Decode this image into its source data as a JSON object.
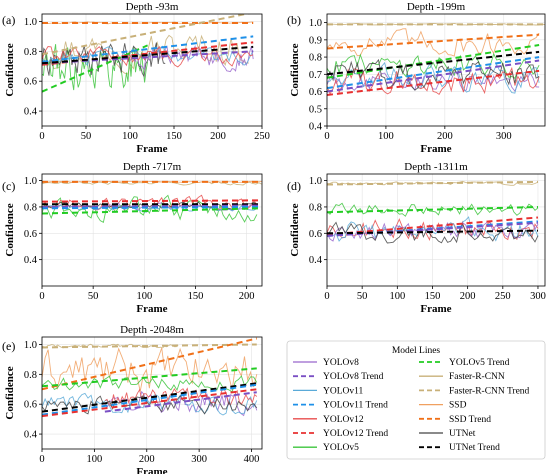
{
  "legend": {
    "title": "Model Lines",
    "entries": [
      {
        "label": "YOLOv8",
        "color": "#9966cc",
        "style": "solid"
      },
      {
        "label": "YOLOv8 Trend",
        "color": "#7a4fc4",
        "style": "dashed"
      },
      {
        "label": "YOLOv11",
        "color": "#5aaad8",
        "style": "solid"
      },
      {
        "label": "YOLOv11 Trend",
        "color": "#1e90e8",
        "style": "dashed"
      },
      {
        "label": "YOLOv12",
        "color": "#e84c4c",
        "style": "solid"
      },
      {
        "label": "YOLOv12 Trend",
        "color": "#e83030",
        "style": "dashed"
      },
      {
        "label": "YOLOv5",
        "color": "#3cc43c",
        "style": "solid"
      },
      {
        "label": "YOLOv5 Trend",
        "color": "#22cc22",
        "style": "dashed"
      },
      {
        "label": "Faster-R-CNN",
        "color": "#c8b078",
        "style": "solid"
      },
      {
        "label": "Faster-R-CNN Trend",
        "color": "#c8b078",
        "style": "dashed"
      },
      {
        "label": "SSD",
        "color": "#f0a060",
        "style": "solid"
      },
      {
        "label": "SSD Trend",
        "color": "#f07018",
        "style": "dashed"
      },
      {
        "label": "UTNet",
        "color": "#444444",
        "style": "solid"
      },
      {
        "label": "UTNet Trend",
        "color": "#000000",
        "style": "dashed"
      }
    ]
  },
  "chart_data": [
    {
      "type": "line",
      "panel_label": "(a)",
      "title": "Depth -93m",
      "xlabel": "Frame",
      "ylabel": "Confidence",
      "xlim": [
        0,
        250
      ],
      "ylim": [
        0.3,
        1.05
      ],
      "xticks": [
        0,
        50,
        100,
        150,
        200,
        250
      ],
      "yticks": [
        0.4,
        0.6,
        0.8,
        1.0
      ],
      "grid": true,
      "series": [
        {
          "name": "Faster-R-CNN",
          "x_range": [
            0,
            235
          ],
          "mean": 0.82,
          "noise": 0.1
        },
        {
          "name": "SSD",
          "x_range": [
            0,
            240
          ],
          "mean": 0.99,
          "noise": 0.005
        },
        {
          "name": "YOLOv5",
          "x_range": [
            0,
            120
          ],
          "mean": 0.7,
          "noise": 0.12
        },
        {
          "name": "UTNet",
          "x_range": [
            0,
            140
          ],
          "mean": 0.75,
          "noise": 0.09
        },
        {
          "name": "YOLOv8",
          "x_range": [
            100,
            240
          ],
          "mean": 0.76,
          "noise": 0.06
        },
        {
          "name": "YOLOv11",
          "x_range": [
            0,
            240
          ],
          "mean": 0.77,
          "noise": 0.05
        },
        {
          "name": "YOLOv12",
          "x_range": [
            0,
            240
          ],
          "mean": 0.77,
          "noise": 0.05
        }
      ],
      "trends": [
        {
          "name": "SSD Trend",
          "x": [
            0,
            240
          ],
          "y": [
            0.99,
            0.99
          ]
        },
        {
          "name": "Faster-R-CNN Trend",
          "x": [
            0,
            240
          ],
          "y": [
            0.78,
            1.06
          ]
        },
        {
          "name": "YOLOv5 Trend",
          "x": [
            0,
            120
          ],
          "y": [
            0.53,
            0.84
          ]
        },
        {
          "name": "YOLOv11 Trend",
          "x": [
            0,
            240
          ],
          "y": [
            0.73,
            0.9
          ]
        },
        {
          "name": "YOLOv12 Trend",
          "x": [
            0,
            240
          ],
          "y": [
            0.71,
            0.86
          ]
        },
        {
          "name": "YOLOv8 Trend",
          "x": [
            0,
            240
          ],
          "y": [
            0.72,
            0.8
          ]
        },
        {
          "name": "UTNet Trend",
          "x": [
            0,
            240
          ],
          "y": [
            0.72,
            0.83
          ]
        }
      ]
    },
    {
      "type": "line",
      "panel_label": "(b)",
      "title": "Depth -199m",
      "xlabel": "Frame",
      "ylabel": "Confidence",
      "xlim": [
        0,
        370
      ],
      "ylim": [
        0.4,
        1.05
      ],
      "xticks": [
        0,
        100,
        200,
        300
      ],
      "yticks": [
        0.4,
        0.5,
        0.6,
        0.7,
        0.8,
        0.9,
        1.0
      ],
      "grid": true,
      "series": [
        {
          "name": "Faster-R-CNN",
          "x_range": [
            0,
            370
          ],
          "mean": 0.99,
          "noise": 0.004
        },
        {
          "name": "SSD",
          "x_range": [
            0,
            360
          ],
          "mean": 0.88,
          "noise": 0.06
        },
        {
          "name": "YOLOv5",
          "x_range": [
            0,
            360
          ],
          "mean": 0.76,
          "noise": 0.06
        },
        {
          "name": "YOLOv8",
          "x_range": [
            0,
            360
          ],
          "mean": 0.66,
          "noise": 0.05
        },
        {
          "name": "YOLOv11",
          "x_range": [
            0,
            360
          ],
          "mean": 0.68,
          "noise": 0.06
        },
        {
          "name": "YOLOv12",
          "x_range": [
            0,
            360
          ],
          "mean": 0.66,
          "noise": 0.07
        },
        {
          "name": "UTNet",
          "x_range": [
            0,
            360
          ],
          "mean": 0.7,
          "noise": 0.07
        }
      ],
      "trends": [
        {
          "name": "Faster-R-CNN Trend",
          "x": [
            0,
            370
          ],
          "y": [
            0.99,
            0.99
          ]
        },
        {
          "name": "SSD Trend",
          "x": [
            0,
            360
          ],
          "y": [
            0.85,
            0.93
          ]
        },
        {
          "name": "YOLOv5 Trend",
          "x": [
            0,
            360
          ],
          "y": [
            0.68,
            0.87
          ]
        },
        {
          "name": "UTNet Trend",
          "x": [
            0,
            360
          ],
          "y": [
            0.7,
            0.83
          ]
        },
        {
          "name": "YOLOv11 Trend",
          "x": [
            0,
            360
          ],
          "y": [
            0.62,
            0.8
          ]
        },
        {
          "name": "YOLOv8 Trend",
          "x": [
            0,
            360
          ],
          "y": [
            0.6,
            0.78
          ]
        },
        {
          "name": "YOLOv12 Trend",
          "x": [
            0,
            360
          ],
          "y": [
            0.58,
            0.72
          ]
        }
      ]
    },
    {
      "type": "line",
      "panel_label": "(c)",
      "title": "Depth -717m",
      "xlabel": "Frame",
      "ylabel": "Confidence",
      "xlim": [
        0,
        215
      ],
      "ylim": [
        0.2,
        1.05
      ],
      "xticks": [
        0,
        50,
        100,
        150,
        200
      ],
      "yticks": [
        0.4,
        0.6,
        0.8,
        1.0
      ],
      "grid": true,
      "series": [
        {
          "name": "Faster-R-CNN",
          "x_range": [
            0,
            215
          ],
          "mean": 0.98,
          "noise": 0.01
        },
        {
          "name": "SSD",
          "x_range": [
            0,
            215
          ],
          "mean": 0.99,
          "noise": 0.004
        },
        {
          "name": "YOLOv5",
          "x_range": [
            0,
            210
          ],
          "mean": 0.78,
          "noise": 0.07
        },
        {
          "name": "YOLOv12",
          "x_range": [
            0,
            210
          ],
          "mean": 0.83,
          "noise": 0.04
        },
        {
          "name": "YOLOv8",
          "x_range": [
            0,
            210
          ],
          "mean": 0.8,
          "noise": 0.02
        },
        {
          "name": "YOLOv11",
          "x_range": [
            0,
            210
          ],
          "mean": 0.79,
          "noise": 0.02
        },
        {
          "name": "UTNet",
          "x_range": [
            0,
            210
          ],
          "mean": 0.81,
          "noise": 0.02
        }
      ],
      "trends": [
        {
          "name": "SSD Trend",
          "x": [
            0,
            215
          ],
          "y": [
            0.99,
            0.99
          ]
        },
        {
          "name": "YOLOv12 Trend",
          "x": [
            0,
            215
          ],
          "y": [
            0.84,
            0.85
          ]
        },
        {
          "name": "UTNet Trend",
          "x": [
            0,
            215
          ],
          "y": [
            0.82,
            0.82
          ]
        },
        {
          "name": "YOLOv8 Trend",
          "x": [
            0,
            215
          ],
          "y": [
            0.8,
            0.81
          ]
        },
        {
          "name": "YOLOv11 Trend",
          "x": [
            0,
            215
          ],
          "y": [
            0.79,
            0.8
          ]
        },
        {
          "name": "YOLOv5 Trend",
          "x": [
            0,
            215
          ],
          "y": [
            0.75,
            0.79
          ]
        }
      ]
    },
    {
      "type": "line",
      "panel_label": "(d)",
      "title": "Depth -1311m",
      "xlabel": "Frame",
      "ylabel": "Confidence",
      "xlim": [
        0,
        310
      ],
      "ylim": [
        0.2,
        1.05
      ],
      "xticks": [
        0,
        50,
        100,
        150,
        200,
        250,
        300
      ],
      "yticks": [
        0.4,
        0.6,
        0.8,
        1.0
      ],
      "grid": true,
      "series": [
        {
          "name": "Faster-R-CNN",
          "x_range": [
            0,
            300
          ],
          "mean": 0.98,
          "noise": 0.01
        },
        {
          "name": "YOLOv5",
          "x_range": [
            0,
            300
          ],
          "mean": 0.78,
          "noise": 0.04
        },
        {
          "name": "YOLOv12",
          "x_range": [
            0,
            300
          ],
          "mean": 0.63,
          "noise": 0.07
        },
        {
          "name": "YOLOv11",
          "x_range": [
            0,
            300
          ],
          "mean": 0.62,
          "noise": 0.07
        },
        {
          "name": "YOLOv8",
          "x_range": [
            0,
            300
          ],
          "mean": 0.62,
          "noise": 0.06
        },
        {
          "name": "UTNet",
          "x_range": [
            0,
            300
          ],
          "mean": 0.6,
          "noise": 0.06
        }
      ],
      "trends": [
        {
          "name": "Faster-R-CNN Trend",
          "x": [
            0,
            300
          ],
          "y": [
            0.97,
            0.99
          ]
        },
        {
          "name": "YOLOv5 Trend",
          "x": [
            0,
            300
          ],
          "y": [
            0.76,
            0.8
          ]
        },
        {
          "name": "YOLOv12 Trend",
          "x": [
            0,
            300
          ],
          "y": [
            0.59,
            0.72
          ]
        },
        {
          "name": "YOLOv11 Trend",
          "x": [
            0,
            300
          ],
          "y": [
            0.58,
            0.69
          ]
        },
        {
          "name": "YOLOv8 Trend",
          "x": [
            0,
            300
          ],
          "y": [
            0.58,
            0.68
          ]
        },
        {
          "name": "UTNet Trend",
          "x": [
            0,
            300
          ],
          "y": [
            0.6,
            0.62
          ]
        }
      ]
    },
    {
      "type": "line",
      "panel_label": "(e)",
      "title": "Depth -2048m",
      "xlabel": "Frame",
      "ylabel": "Confidence",
      "xlim": [
        0,
        420
      ],
      "ylim": [
        0.3,
        1.05
      ],
      "xticks": [
        0,
        100,
        200,
        300,
        400
      ],
      "yticks": [
        0.4,
        0.6,
        0.8,
        1.0
      ],
      "grid": true,
      "series": [
        {
          "name": "Faster-R-CNN",
          "x_range": [
            0,
            260
          ],
          "mean": 0.99,
          "noise": 0.01
        },
        {
          "name": "SSD",
          "x_range": [
            0,
            410
          ],
          "mean": 0.82,
          "noise": 0.12
        },
        {
          "name": "YOLOv5",
          "x_range": [
            0,
            410
          ],
          "mean": 0.74,
          "noise": 0.04
        },
        {
          "name": "YOLOv8",
          "x_range": [
            120,
            410
          ],
          "mean": 0.62,
          "noise": 0.06
        },
        {
          "name": "YOLOv11",
          "x_range": [
            0,
            410
          ],
          "mean": 0.6,
          "noise": 0.06
        },
        {
          "name": "YOLOv12",
          "x_range": [
            120,
            410
          ],
          "mean": 0.64,
          "noise": 0.05
        },
        {
          "name": "UTNet",
          "x_range": [
            0,
            410
          ],
          "mean": 0.6,
          "noise": 0.05
        }
      ],
      "trends": [
        {
          "name": "Faster-R-CNN Trend",
          "x": [
            0,
            410
          ],
          "y": [
            0.98,
            1.0
          ]
        },
        {
          "name": "SSD Trend",
          "x": [
            0,
            410
          ],
          "y": [
            0.7,
            1.04
          ]
        },
        {
          "name": "YOLOv5 Trend",
          "x": [
            0,
            410
          ],
          "y": [
            0.72,
            0.84
          ]
        },
        {
          "name": "UTNet Trend",
          "x": [
            0,
            410
          ],
          "y": [
            0.55,
            0.74
          ]
        },
        {
          "name": "YOLOv11 Trend",
          "x": [
            0,
            410
          ],
          "y": [
            0.53,
            0.73
          ]
        },
        {
          "name": "YOLOv12 Trend",
          "x": [
            0,
            410
          ],
          "y": [
            0.52,
            0.7
          ]
        },
        {
          "name": "YOLOv8 Trend",
          "x": [
            120,
            410
          ],
          "y": [
            0.55,
            0.68
          ]
        }
      ]
    }
  ]
}
